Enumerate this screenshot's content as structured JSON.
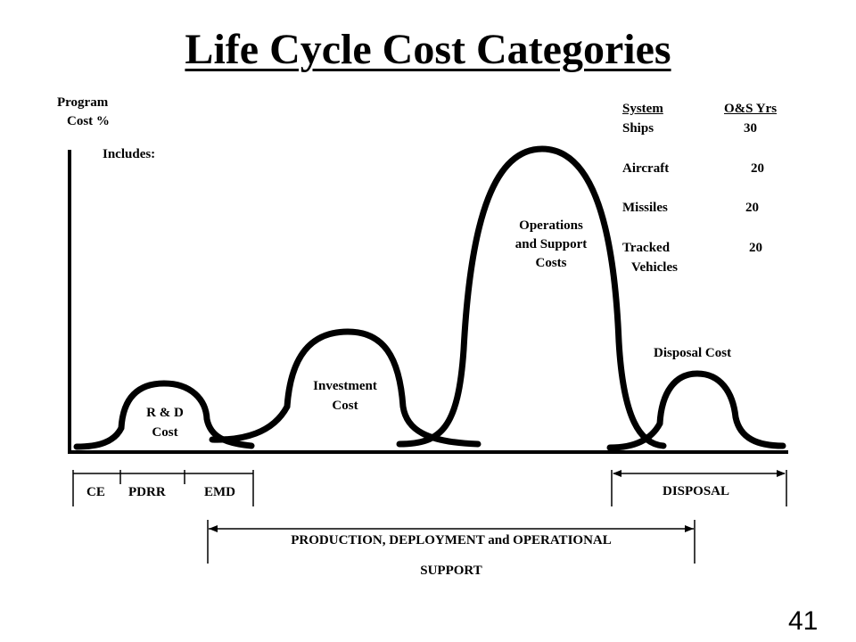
{
  "title": "Life Cycle Cost Categories",
  "y_axis": {
    "line1": "Program",
    "line2": "Cost  %"
  },
  "includes_label": "Includes:",
  "curves": {
    "rd": [
      "R  &  D",
      "Cost"
    ],
    "investment": [
      "Investment",
      "Cost"
    ],
    "os": [
      "Operations",
      "and  Support",
      "Costs"
    ],
    "disposal": "Disposal  Cost"
  },
  "os_table": {
    "header_system": "System",
    "header_years": "O&S Yrs",
    "rows": [
      {
        "system": "Ships",
        "years": "30"
      },
      {
        "system": "Aircraft",
        "years": "20"
      },
      {
        "system": "Missiles",
        "years": "20"
      },
      {
        "system": "Tracked",
        "years": "20"
      }
    ],
    "tracked_line2": "Vehicles"
  },
  "phases": {
    "ce": "CE",
    "pdrr": "PDRR",
    "emd": "EMD",
    "disposal": "DISPOSAL",
    "production_line1": "PRODUCTION, DEPLOYMENT and OPERATIONAL",
    "production_line2": "SUPPORT"
  },
  "page_number": "41"
}
